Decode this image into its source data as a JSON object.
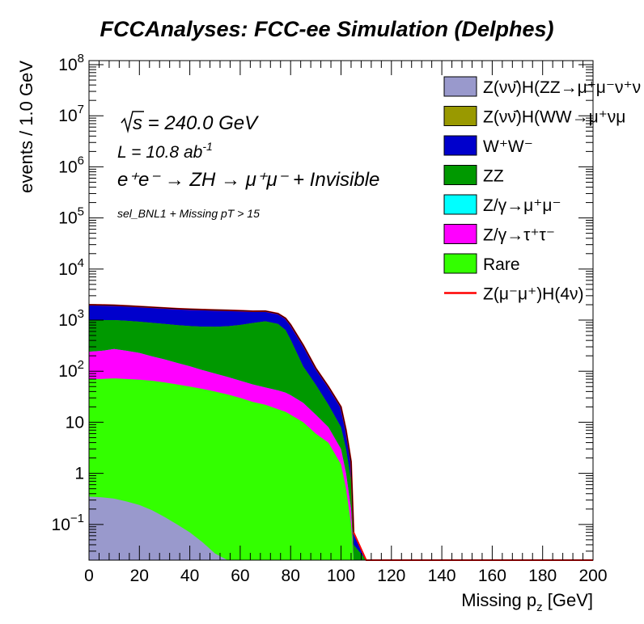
{
  "chart_data": {
    "type": "area",
    "stacked": true,
    "title": "FCCAnalyses: FCC-ee Simulation (Delphes)",
    "xlabel": "Missing p_z [GeV]",
    "ylabel": "events / 1.0 GeV",
    "xlim": [
      0,
      200
    ],
    "ylim": [
      0.02,
      120000000
    ],
    "yscale": "log",
    "x_ticks": [
      "0",
      "20",
      "40",
      "60",
      "80",
      "100",
      "120",
      "140",
      "160",
      "180",
      "200"
    ],
    "y_ticks": [
      {
        "value": 100000000,
        "base": "10",
        "exp": "8"
      },
      {
        "value": 10000000,
        "base": "10",
        "exp": "7"
      },
      {
        "value": 1000000,
        "base": "10",
        "exp": "6"
      },
      {
        "value": 100000,
        "base": "10",
        "exp": "5"
      },
      {
        "value": 10000,
        "base": "10",
        "exp": "4"
      },
      {
        "value": 1000,
        "base": "10",
        "exp": "3"
      },
      {
        "value": 100,
        "base": "10",
        "exp": "2"
      },
      {
        "value": 10,
        "base": "10",
        "exp": ""
      },
      {
        "value": 1,
        "base": "1",
        "exp": ""
      },
      {
        "value": 0.1,
        "base": "10",
        "exp": "−1"
      }
    ],
    "annotations": {
      "sqrt_s": "s = 240.0 GeV",
      "lumi_prefix": "L = 10.8 ab",
      "lumi_exp": "-1",
      "process": "e⁺e⁻ → ZH → μ⁺μ⁻ + Invisible",
      "selection": "sel_BNL1 + Missing pT > 15"
    },
    "legend_position": "top-right",
    "legend": [
      {
        "label": "Z(νν̄)H(ZZ→μ⁺μ⁻ν⁺ν",
        "color": "#9999cc",
        "style": "fill"
      },
      {
        "label": "Z(νν̄)H(WW→μ⁺νμ",
        "color": "#999900",
        "style": "fill"
      },
      {
        "label": "W⁺W⁻",
        "color": "#0000cc",
        "style": "fill"
      },
      {
        "label": "ZZ",
        "color": "#009900",
        "style": "fill"
      },
      {
        "label": "Z/γ→μ⁺μ⁻",
        "color": "#00ffff",
        "style": "fill"
      },
      {
        "label": "Z/γ→τ⁺τ⁻",
        "color": "#ff00ff",
        "style": "fill"
      },
      {
        "label": "Rare",
        "color": "#33ff00",
        "style": "fill"
      },
      {
        "label": "Z(μ⁻μ⁺)H(4ν)",
        "color": "#ff0000",
        "style": "line"
      }
    ],
    "x": [
      0,
      5,
      10,
      15,
      20,
      25,
      30,
      35,
      40,
      45,
      50,
      55,
      60,
      65,
      70,
      75,
      78,
      80,
      85,
      90,
      95,
      100,
      102,
      104,
      105,
      110,
      120,
      140,
      160,
      180,
      200
    ],
    "series": [
      {
        "name": "Z(νν̄)H(ZZ→μ⁺μ⁻ν⁺ν",
        "color": "#9999cc",
        "values": [
          0.35,
          0.34,
          0.32,
          0.28,
          0.24,
          0.19,
          0.14,
          0.1,
          0.07,
          0.045,
          0.027,
          0.017,
          0.011,
          0,
          0,
          0,
          0,
          0,
          0,
          0,
          0,
          0,
          0,
          0,
          0,
          0,
          0,
          0,
          0,
          0,
          0
        ]
      },
      {
        "name": "Rare",
        "color": "#33ff00",
        "values": [
          70,
          70,
          72,
          70,
          68,
          65,
          60,
          55,
          50,
          45,
          40,
          35,
          30,
          25,
          22,
          18,
          16,
          14,
          10,
          6,
          4,
          1.5,
          0.5,
          0.1,
          0.02,
          0,
          0,
          0,
          0,
          0,
          0
        ]
      },
      {
        "name": "Z/γ→τ⁺τ⁻",
        "color": "#ff00ff",
        "values": [
          170,
          180,
          200,
          180,
          160,
          130,
          110,
          90,
          75,
          60,
          50,
          42,
          35,
          30,
          26,
          24,
          22,
          20,
          14,
          8,
          4,
          1.5,
          0.5,
          0.1,
          0,
          0,
          0,
          0,
          0,
          0,
          0
        ]
      },
      {
        "name": "Z/γ→μ⁺μ⁻",
        "color": "#00ffff",
        "values": [
          0,
          0,
          0,
          0,
          0,
          0,
          0,
          0,
          0,
          0,
          0,
          0,
          0,
          0,
          0,
          0,
          0,
          0,
          0,
          0,
          0,
          0,
          0,
          0,
          0,
          0,
          0,
          0,
          0,
          0,
          0
        ]
      },
      {
        "name": "ZZ",
        "color": "#009900",
        "values": [
          760,
          750,
          730,
          720,
          700,
          690,
          670,
          650,
          640,
          640,
          650,
          680,
          740,
          820,
          900,
          800,
          600,
          380,
          100,
          40,
          14,
          5,
          2,
          0.5,
          0.02,
          0,
          0,
          0,
          0,
          0,
          0
        ]
      },
      {
        "name": "Z(νν̄)H(WW→μ⁺νμ",
        "color": "#999900",
        "values": [
          0,
          0,
          0,
          0,
          0,
          0,
          0,
          0,
          0,
          0,
          0,
          0,
          0,
          0,
          0,
          0,
          0,
          0,
          0,
          0,
          0,
          0,
          0,
          0,
          0,
          0,
          0,
          0,
          0,
          0,
          0
        ]
      },
      {
        "name": "W⁺W⁻",
        "color": "#0000cc",
        "values": [
          1000,
          980,
          950,
          930,
          910,
          900,
          890,
          880,
          870,
          860,
          840,
          800,
          720,
          620,
          550,
          500,
          450,
          400,
          200,
          60,
          28,
          12,
          4,
          1,
          0.03,
          0,
          0,
          0,
          0,
          0,
          0
        ]
      }
    ],
    "signal": {
      "name": "Z(μ⁻μ⁺)H(4ν)",
      "color": "#ff0000",
      "baseline": 0.02
    }
  }
}
